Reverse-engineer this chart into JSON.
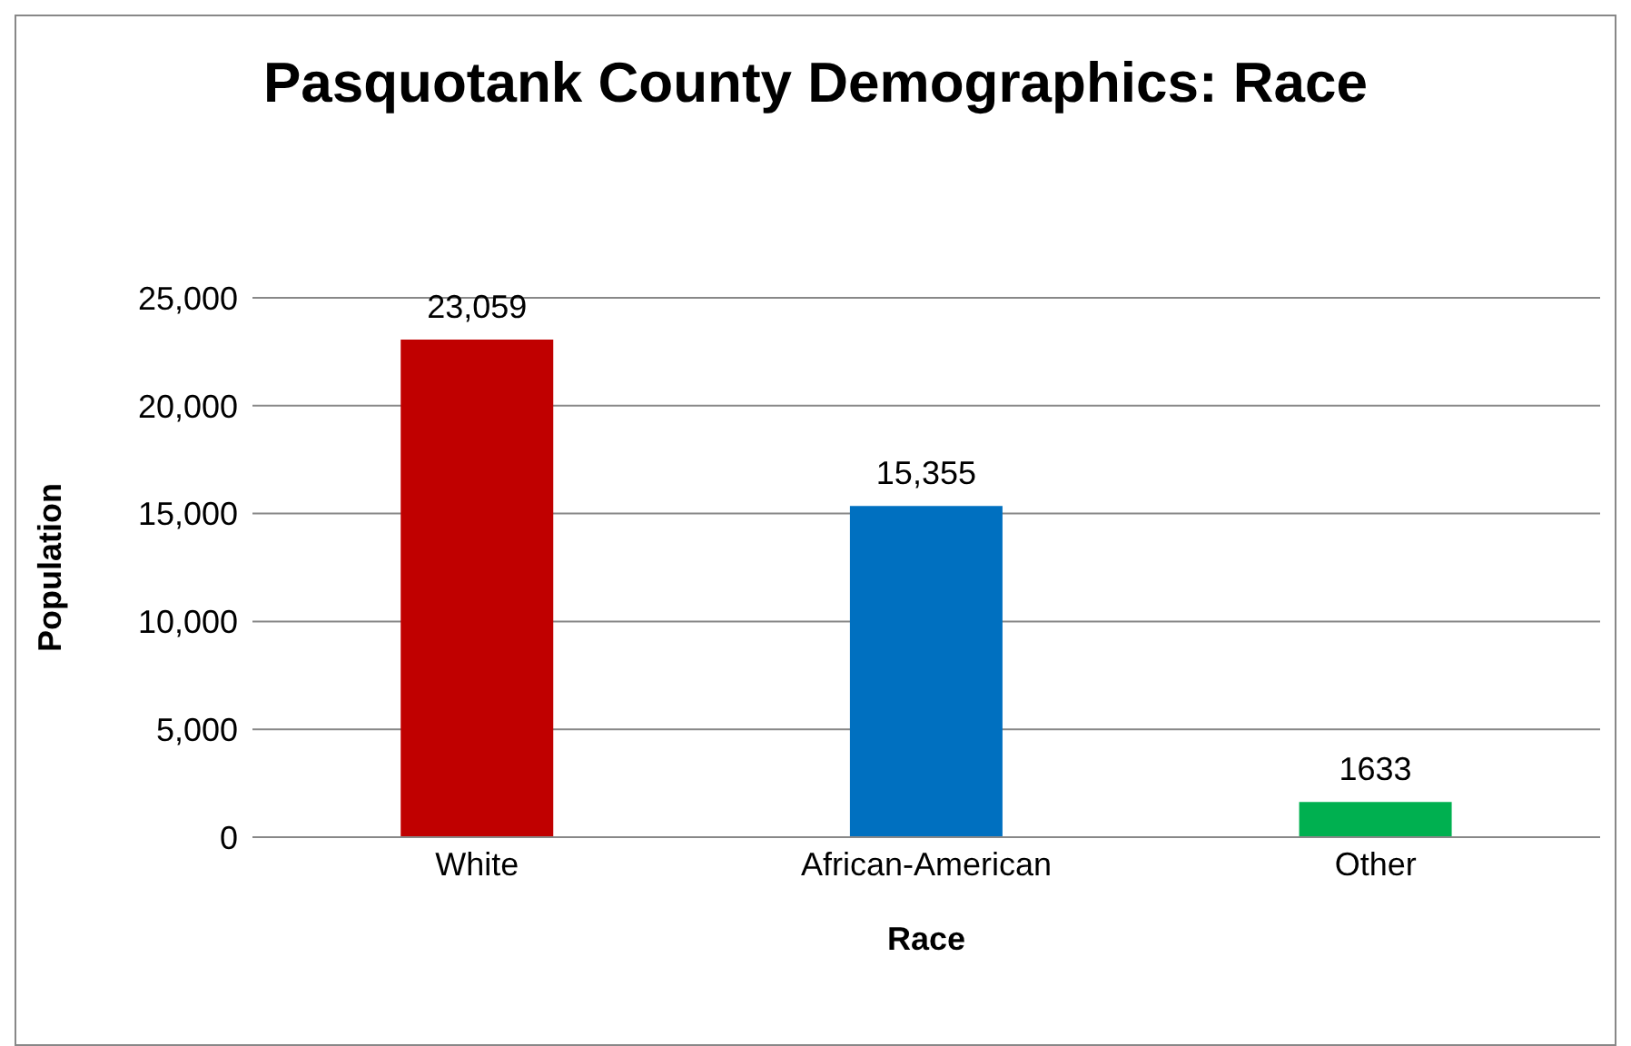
{
  "chart_data": {
    "type": "bar",
    "title": "Pasquotank County Demographics: Race",
    "xlabel": "Race",
    "ylabel": "Population",
    "categories": [
      "White",
      "African-American",
      "Other"
    ],
    "values": [
      23059,
      15355,
      1633
    ],
    "colors": [
      "#c00000",
      "#0070c0",
      "#00b050"
    ],
    "value_labels": [
      "23,059",
      "15,355",
      "1633"
    ],
    "ylim": [
      0,
      25000
    ],
    "yticks": [
      {
        "value": 0,
        "label": "0"
      },
      {
        "value": 5000,
        "label": "5,000"
      },
      {
        "value": 10000,
        "label": "10,000"
      },
      {
        "value": 15000,
        "label": "15,000"
      },
      {
        "value": 20000,
        "label": "20,000"
      },
      {
        "value": 25000,
        "label": "25,000"
      }
    ],
    "grid": "y"
  }
}
